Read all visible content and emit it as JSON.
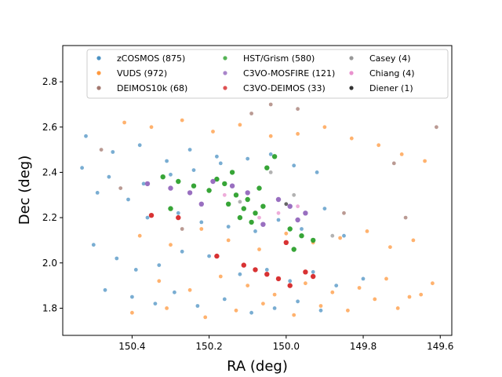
{
  "chart_data": {
    "type": "scatter",
    "xlabel": "RA  (deg)",
    "ylabel": "Dec  (deg)",
    "xlim": [
      150.58,
      149.57
    ],
    "ylim": [
      1.68,
      2.96
    ],
    "x_inverted": true,
    "x_ticks": [
      150.4,
      150.2,
      150.0,
      149.8,
      149.6
    ],
    "x_tick_labels": [
      "150.4",
      "150.2",
      "150.0",
      "149.8",
      "149.6"
    ],
    "y_ticks": [
      1.8,
      2.0,
      2.2,
      2.4,
      2.6,
      2.8
    ],
    "y_tick_labels": [
      "1.8",
      "2.0",
      "2.2",
      "2.4",
      "2.6",
      "2.8"
    ],
    "grid": false,
    "legend_position": "top",
    "series": [
      {
        "name": "zCOSMOS  (875)",
        "count": 875,
        "color": "#1f77b4",
        "x": [
          150.52,
          150.45,
          150.38,
          150.31,
          150.25,
          150.18,
          150.49,
          150.41,
          150.36,
          150.28,
          150.22,
          150.15,
          150.08,
          150.02,
          149.96,
          149.9,
          149.85,
          150.5,
          150.44,
          150.39,
          150.33,
          150.27,
          150.2,
          150.12,
          150.05,
          149.99,
          149.93,
          149.87,
          149.8,
          150.47,
          150.4,
          150.34,
          150.29,
          150.23,
          150.16,
          150.09,
          150.03,
          149.97,
          149.91,
          150.53,
          150.46,
          150.37,
          150.3,
          150.24,
          150.17,
          150.1,
          150.04,
          149.98,
          149.92
        ],
        "y": [
          2.56,
          2.49,
          2.52,
          2.45,
          2.5,
          2.47,
          2.31,
          2.28,
          2.2,
          2.22,
          2.18,
          2.16,
          2.14,
          2.19,
          2.15,
          2.24,
          2.12,
          2.08,
          2.02,
          1.97,
          1.99,
          2.05,
          2.03,
          1.95,
          1.97,
          1.92,
          1.96,
          1.9,
          1.93,
          1.88,
          1.85,
          1.82,
          1.87,
          1.81,
          1.84,
          1.78,
          1.8,
          1.83,
          1.79,
          2.42,
          2.38,
          2.35,
          2.39,
          2.41,
          2.44,
          2.46,
          2.48,
          2.43,
          2.4
        ]
      },
      {
        "name": "VUDS  (972)",
        "count": 972,
        "color": "#ff7f0e",
        "x": [
          150.42,
          150.35,
          150.27,
          150.19,
          150.12,
          150.04,
          149.97,
          149.9,
          149.83,
          149.76,
          149.7,
          149.64,
          150.38,
          150.3,
          150.22,
          150.15,
          150.07,
          150.0,
          149.93,
          149.86,
          149.79,
          149.73,
          149.67,
          150.33,
          150.25,
          150.17,
          150.1,
          150.03,
          149.95,
          149.88,
          149.81,
          149.74,
          149.68,
          149.62,
          150.4,
          150.31,
          150.21,
          150.13,
          150.06,
          149.98,
          149.91,
          149.84,
          149.77,
          149.71,
          149.65
        ],
        "y": [
          2.62,
          2.6,
          2.63,
          2.58,
          2.61,
          2.56,
          2.57,
          2.6,
          2.55,
          2.52,
          2.48,
          2.45,
          2.12,
          2.08,
          2.15,
          2.1,
          2.06,
          2.13,
          2.09,
          2.11,
          2.14,
          2.07,
          2.1,
          1.92,
          1.88,
          1.94,
          1.9,
          1.86,
          1.91,
          1.87,
          1.89,
          1.93,
          1.85,
          1.91,
          1.78,
          1.8,
          1.76,
          1.79,
          1.82,
          1.77,
          1.81,
          1.79,
          1.84,
          1.8,
          1.86
        ]
      },
      {
        "name": "DEIMOS10k  (68)",
        "count": 68,
        "color": "#8c564b",
        "x": [
          150.48,
          150.43,
          150.04,
          150.09,
          149.97,
          149.85,
          149.72,
          149.69,
          150.27,
          149.61
        ],
        "y": [
          2.5,
          2.33,
          2.7,
          2.66,
          2.68,
          2.22,
          2.44,
          2.2,
          2.15,
          2.6
        ]
      },
      {
        "name": "HST/Grism  (580)",
        "count": 580,
        "color": "#2ca02c",
        "x": [
          150.32,
          150.28,
          150.24,
          150.2,
          150.16,
          150.13,
          150.1,
          150.07,
          150.05,
          150.03,
          150.15,
          150.11,
          150.08,
          150.12,
          150.09,
          150.06,
          149.99,
          149.96,
          149.93,
          149.98,
          150.3,
          150.18,
          150.14
        ],
        "y": [
          2.38,
          2.36,
          2.34,
          2.32,
          2.35,
          2.3,
          2.28,
          2.33,
          2.42,
          2.47,
          2.26,
          2.24,
          2.22,
          2.2,
          2.18,
          2.25,
          2.15,
          2.12,
          2.1,
          2.06,
          2.24,
          2.37,
          2.4
        ]
      },
      {
        "name": "C3VO-MOSFIRE  (121)",
        "count": 121,
        "color": "#9467bd",
        "x": [
          150.36,
          150.3,
          150.25,
          150.19,
          150.14,
          150.06,
          150.02,
          149.99,
          149.95,
          150.1,
          149.97,
          150.22
        ],
        "y": [
          2.35,
          2.33,
          2.31,
          2.36,
          2.34,
          2.17,
          2.28,
          2.25,
          2.22,
          2.31,
          2.19,
          2.26
        ]
      },
      {
        "name": "C3VO-DEIMOS  (33)",
        "count": 33,
        "color": "#d62728",
        "x": [
          150.28,
          150.35,
          150.11,
          150.08,
          150.05,
          150.02,
          149.99,
          149.95,
          149.93,
          150.18,
          150.0
        ],
        "y": [
          2.2,
          2.21,
          1.99,
          1.97,
          1.95,
          1.93,
          1.9,
          1.96,
          1.94,
          2.03,
          2.09
        ]
      },
      {
        "name": "Casey  (4)",
        "count": 4,
        "color": "#7f7f7f",
        "x": [
          150.12,
          149.98,
          149.88,
          150.04
        ],
        "y": [
          2.27,
          2.3,
          2.12,
          2.4
        ]
      },
      {
        "name": "Chiang  (4)",
        "count": 4,
        "color": "#e377c2",
        "x": [
          150.07,
          150.02,
          149.97,
          150.16
        ],
        "y": [
          2.2,
          2.22,
          2.25,
          2.3
        ]
      },
      {
        "name": "Diener  (1)",
        "count": 1,
        "color": "#000000",
        "x": [
          150.0
        ],
        "y": [
          2.26
        ]
      }
    ]
  }
}
